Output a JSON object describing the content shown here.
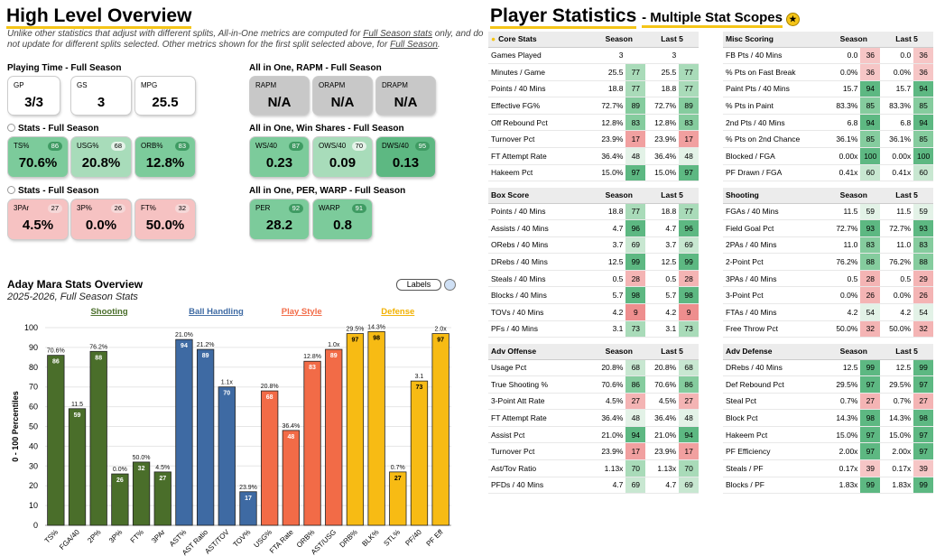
{
  "left_header": {
    "title": "High Level Overview",
    "subtitle_pre": "Unlike other statistics that adjust with different splits, All-in-One metrics are computed for ",
    "subtitle_link1": "Full Season stats",
    "subtitle_mid": " only, and do not update for different splits selected. Other metrics shown for the first split selected above, for ",
    "subtitle_link2": "Full Season",
    "subtitle_end": "."
  },
  "playing_time": {
    "title": "Playing Time - Full Season",
    "cards": [
      {
        "label": "GP",
        "value": "3/3"
      },
      {
        "label": "GS",
        "value": "3"
      },
      {
        "label": "MPG",
        "value": "25.5"
      }
    ]
  },
  "rapm": {
    "title": "All in One, RAPM - Full Season",
    "cards": [
      {
        "label": "RAPM",
        "value": "N/A"
      },
      {
        "label": "ORAPM",
        "value": "N/A"
      },
      {
        "label": "DRAPM",
        "value": "N/A"
      }
    ]
  },
  "stats1": {
    "title": "Stats - Full Season",
    "cards": [
      {
        "label": "TS%",
        "value": "70.6%",
        "pct": "86"
      },
      {
        "label": "USG%",
        "value": "20.8%",
        "pct": "68"
      },
      {
        "label": "ORB%",
        "value": "12.8%",
        "pct": "83"
      }
    ]
  },
  "winshares": {
    "title": "All in One, Win Shares - Full Season",
    "cards": [
      {
        "label": "WS/40",
        "value": "0.23",
        "pct": "87"
      },
      {
        "label": "OWS/40",
        "value": "0.09",
        "pct": "70"
      },
      {
        "label": "DWS/40",
        "value": "0.13",
        "pct": "95"
      }
    ]
  },
  "stats2": {
    "title": "Stats - Full Season",
    "cards": [
      {
        "label": "3PAr",
        "value": "4.5%",
        "pct": "27"
      },
      {
        "label": "3P%",
        "value": "0.0%",
        "pct": "26"
      },
      {
        "label": "FT%",
        "value": "50.0%",
        "pct": "32"
      }
    ]
  },
  "per": {
    "title": "All in One, PER, WARP - Full Season",
    "cards": [
      {
        "label": "PER",
        "value": "28.2",
        "pct": "92"
      },
      {
        "label": "WARP",
        "value": "0.8",
        "pct": "91"
      }
    ]
  },
  "chart_header": {
    "title": "Aday Mara Stats Overview",
    "subtitle": "2025-2026, Full Season Stats",
    "labels_button": "Labels"
  },
  "chart_data": {
    "type": "bar",
    "ylabel": "0 - 100 Percentiles",
    "ylim": [
      0,
      100
    ],
    "yticks": [
      0,
      10,
      20,
      30,
      40,
      50,
      60,
      70,
      80,
      90,
      100
    ],
    "groups": [
      {
        "name": "Shooting",
        "color": "#4a6e2a",
        "label_color": "#4a6e2a"
      },
      {
        "name": "Ball Handling",
        "color": "#3e6aa3",
        "label_color": "#3e6aa3"
      },
      {
        "name": "Play Style",
        "color": "#f26b47",
        "label_color": "#f26b47"
      },
      {
        "name": "Defense",
        "color": "#f7bb14",
        "label_color": "#f2b100"
      }
    ],
    "categories": [
      "TS%",
      "FGA/40",
      "2P%",
      "3P%",
      "FT%",
      "3PAr",
      "AST%",
      "AST Ratio",
      "AST/TOV",
      "TOV%",
      "USG%",
      "FTA Rate",
      "ORB%",
      "AST/USG",
      "DRB%",
      "BLK%",
      "STL%",
      "PF/40",
      "PF Eff"
    ],
    "group_index": [
      0,
      0,
      0,
      0,
      0,
      0,
      1,
      1,
      1,
      1,
      2,
      2,
      2,
      2,
      3,
      3,
      3,
      3,
      3
    ],
    "values": [
      86,
      59,
      88,
      26,
      32,
      27,
      94,
      89,
      70,
      17,
      68,
      48,
      83,
      89,
      97,
      98,
      27,
      73,
      97
    ],
    "raw_labels": [
      "70.6%",
      "11.5",
      "76.2%",
      "0.0%",
      "50.0%",
      "4.5%",
      "21.0%",
      "21.2%",
      "1.1x",
      "23.9%",
      "20.8%",
      "36.4%",
      "12.8%",
      "1.0x",
      "29.5%",
      "14.3%",
      "0.7%",
      "3.1",
      "2.0x"
    ]
  },
  "right_header": {
    "title": "Player Statistics",
    "subtitle": "- Multiple Stat Scopes"
  },
  "tables": [
    {
      "title": "Core Stats",
      "col1": "Season",
      "col2": "Last 5",
      "icon": true,
      "rows": [
        [
          "Games Played",
          "3",
          "",
          "3",
          ""
        ],
        [
          "Minutes / Game",
          "25.5",
          "77",
          "25.5",
          "77"
        ],
        [
          "Points / 40 Mins",
          "18.8",
          "77",
          "18.8",
          "77"
        ],
        [
          "Effective FG%",
          "72.7%",
          "89",
          "72.7%",
          "89"
        ],
        [
          "Off Rebound Pct",
          "12.8%",
          "83",
          "12.8%",
          "83"
        ],
        [
          "Turnover Pct",
          "23.9%",
          "17",
          "23.9%",
          "17"
        ],
        [
          "FT Attempt Rate",
          "36.4%",
          "48",
          "36.4%",
          "48"
        ],
        [
          "Hakeem Pct",
          "15.0%",
          "97",
          "15.0%",
          "97"
        ]
      ]
    },
    {
      "title": "Misc Scoring",
      "col1": "Season",
      "col2": "Last 5",
      "rows": [
        [
          "FB Pts / 40 Mins",
          "0.0",
          "36",
          "0.0",
          "36"
        ],
        [
          "% Pts on Fast Break",
          "0.0%",
          "36",
          "0.0%",
          "36"
        ],
        [
          "Paint Pts / 40 Mins",
          "15.7",
          "94",
          "15.7",
          "94"
        ],
        [
          "% Pts in Paint",
          "83.3%",
          "85",
          "83.3%",
          "85"
        ],
        [
          "2nd Pts / 40 Mins",
          "6.8",
          "94",
          "6.8",
          "94"
        ],
        [
          "% Pts on 2nd Chance",
          "36.1%",
          "85",
          "36.1%",
          "85"
        ],
        [
          "Blocked / FGA",
          "0.00x",
          "100",
          "0.00x",
          "100"
        ],
        [
          "PF Drawn / FGA",
          "0.41x",
          "60",
          "0.41x",
          "60"
        ]
      ]
    },
    {
      "title": "Box Score",
      "col1": "Season",
      "col2": "Last 5",
      "rows": [
        [
          "Points / 40 Mins",
          "18.8",
          "77",
          "18.8",
          "77"
        ],
        [
          "Assists / 40 Mins",
          "4.7",
          "96",
          "4.7",
          "96"
        ],
        [
          "ORebs / 40 Mins",
          "3.7",
          "69",
          "3.7",
          "69"
        ],
        [
          "DRebs / 40 Mins",
          "12.5",
          "99",
          "12.5",
          "99"
        ],
        [
          "Steals / 40 Mins",
          "0.5",
          "28",
          "0.5",
          "28"
        ],
        [
          "Blocks / 40 Mins",
          "5.7",
          "98",
          "5.7",
          "98"
        ],
        [
          "TOVs / 40 Mins",
          "4.2",
          "9",
          "4.2",
          "9"
        ],
        [
          "PFs / 40 Mins",
          "3.1",
          "73",
          "3.1",
          "73"
        ]
      ]
    },
    {
      "title": "Shooting",
      "col1": "Season",
      "col2": "Last 5",
      "rows": [
        [
          "FGAs / 40 Mins",
          "11.5",
          "59",
          "11.5",
          "59"
        ],
        [
          "Field Goal Pct",
          "72.7%",
          "93",
          "72.7%",
          "93"
        ],
        [
          "2PAs / 40 Mins",
          "11.0",
          "83",
          "11.0",
          "83"
        ],
        [
          "2-Point Pct",
          "76.2%",
          "88",
          "76.2%",
          "88"
        ],
        [
          "3PAs / 40 Mins",
          "0.5",
          "28",
          "0.5",
          "29"
        ],
        [
          "3-Point Pct",
          "0.0%",
          "26",
          "0.0%",
          "26"
        ],
        [
          "FTAs / 40 Mins",
          "4.2",
          "54",
          "4.2",
          "54"
        ],
        [
          "Free Throw Pct",
          "50.0%",
          "32",
          "50.0%",
          "32"
        ]
      ]
    },
    {
      "title": "Adv Offense",
      "col1": "Season",
      "col2": "Last 5",
      "rows": [
        [
          "Usage Pct",
          "20.8%",
          "68",
          "20.8%",
          "68"
        ],
        [
          "True Shooting %",
          "70.6%",
          "86",
          "70.6%",
          "86"
        ],
        [
          "3-Point Att Rate",
          "4.5%",
          "27",
          "4.5%",
          "27"
        ],
        [
          "FT Attempt Rate",
          "36.4%",
          "48",
          "36.4%",
          "48"
        ],
        [
          "Assist Pct",
          "21.0%",
          "94",
          "21.0%",
          "94"
        ],
        [
          "Turnover Pct",
          "23.9%",
          "17",
          "23.9%",
          "17"
        ],
        [
          "Ast/Tov Ratio",
          "1.13x",
          "70",
          "1.13x",
          "70"
        ],
        [
          "PFDs / 40 Mins",
          "4.7",
          "69",
          "4.7",
          "69"
        ]
      ]
    },
    {
      "title": "Adv Defense",
      "col1": "Season",
      "col2": "Last 5",
      "rows": [
        [
          "DRebs / 40 Mins",
          "12.5",
          "99",
          "12.5",
          "99"
        ],
        [
          "Def Rebound Pct",
          "29.5%",
          "97",
          "29.5%",
          "97"
        ],
        [
          "Steal Pct",
          "0.7%",
          "27",
          "0.7%",
          "27"
        ],
        [
          "Block Pct",
          "14.3%",
          "98",
          "14.3%",
          "98"
        ],
        [
          "Hakeem Pct",
          "15.0%",
          "97",
          "15.0%",
          "97"
        ],
        [
          "PF Efficiency",
          "2.00x",
          "97",
          "2.00x",
          "97"
        ],
        [
          "Steals / PF",
          "0.17x",
          "39",
          "0.17x",
          "39"
        ],
        [
          "Blocks / PF",
          "1.83x",
          "99",
          "1.83x",
          "99"
        ]
      ]
    }
  ]
}
